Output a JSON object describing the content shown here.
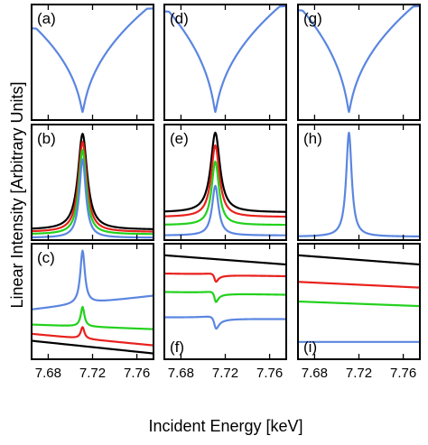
{
  "figure": {
    "xlabel": "Incident Energy [keV]",
    "ylabel": "Linear Intensity [Arbitrary Units]",
    "xticks": [
      "7.68",
      "7.72",
      "7.76"
    ]
  },
  "colors": {
    "black": "#000000",
    "red": "#e8211d",
    "green": "#22d11c",
    "blue": "#5b86e0"
  },
  "chart_data": [
    {
      "label": "(a)",
      "type": "line",
      "xlim": [
        7.665,
        7.775
      ],
      "series": [
        {
          "color": "blue",
          "shape": "dip",
          "center": 7.711,
          "width": 0.002,
          "ends": [
            0.81,
            0.98
          ],
          "min": 0.07
        }
      ]
    },
    {
      "label": "(d)",
      "type": "line",
      "xlim": [
        7.665,
        7.775
      ],
      "series": [
        {
          "color": "blue",
          "shape": "dip",
          "center": 7.711,
          "width": 0.002,
          "ends": [
            0.96,
            1.0
          ],
          "min": 0.07
        }
      ]
    },
    {
      "label": "(g)",
      "type": "line",
      "xlim": [
        7.665,
        7.775
      ],
      "series": [
        {
          "color": "blue",
          "shape": "dip",
          "center": 7.711,
          "width": 0.002,
          "ends": [
            0.97,
            1.0
          ],
          "min": 0.07
        }
      ]
    },
    {
      "label": "(b)",
      "type": "line",
      "xlim": [
        7.665,
        7.775
      ],
      "series": [
        {
          "color": "black",
          "shape": "peak",
          "center": 7.711,
          "width": 0.005,
          "base": 0.09,
          "peak": 0.92
        },
        {
          "color": "red",
          "shape": "peak",
          "center": 7.711,
          "width": 0.0045,
          "base": 0.07,
          "peak": 0.85
        },
        {
          "color": "green",
          "shape": "peak",
          "center": 7.711,
          "width": 0.004,
          "base": 0.05,
          "peak": 0.78
        },
        {
          "color": "blue",
          "shape": "peak",
          "center": 7.711,
          "width": 0.0035,
          "base": 0.02,
          "peak": 0.7
        }
      ]
    },
    {
      "label": "(e)",
      "type": "line",
      "xlim": [
        7.665,
        7.775
      ],
      "series": [
        {
          "color": "black",
          "shape": "peak",
          "center": 7.711,
          "width": 0.005,
          "base": 0.24,
          "peak": 0.93
        },
        {
          "color": "red",
          "shape": "peak",
          "center": 7.711,
          "width": 0.0045,
          "base": 0.2,
          "peak": 0.82
        },
        {
          "color": "green",
          "shape": "peak",
          "center": 7.711,
          "width": 0.004,
          "base": 0.13,
          "peak": 0.68
        },
        {
          "color": "blue",
          "shape": "peak",
          "center": 7.711,
          "width": 0.0035,
          "base": 0.04,
          "peak": 0.47
        }
      ]
    },
    {
      "label": "(h)",
      "type": "line",
      "xlim": [
        7.665,
        7.775
      ],
      "series": [
        {
          "color": "blue",
          "shape": "peak",
          "center": 7.711,
          "width": 0.003,
          "base": 0.03,
          "peak": 0.93
        }
      ]
    },
    {
      "label": "(c)",
      "type": "line",
      "xlim": [
        7.665,
        7.775
      ],
      "series": [
        {
          "color": "black",
          "shape": "slope",
          "start": 0.16,
          "end": 0.05
        },
        {
          "color": "red",
          "shape": "peak-on-slope",
          "center": 7.711,
          "width": 0.002,
          "start": 0.22,
          "end": 0.12,
          "amp": 0.1
        },
        {
          "color": "green",
          "shape": "peak-on-slope",
          "center": 7.711,
          "width": 0.002,
          "start": 0.3,
          "end": 0.26,
          "amp": 0.17
        },
        {
          "color": "blue",
          "shape": "peak-on-slope",
          "center": 7.711,
          "width": 0.0025,
          "start": 0.43,
          "end": 0.55,
          "amp": 0.46
        }
      ]
    },
    {
      "label": "(f)",
      "type": "line",
      "xlim": [
        7.665,
        7.775
      ],
      "series": [
        {
          "color": "black",
          "shape": "slope",
          "start": 0.9,
          "end": 0.82
        },
        {
          "color": "red",
          "shape": "dip-on-slope",
          "center": 7.711,
          "width": 0.002,
          "start": 0.74,
          "end": 0.72,
          "amp": 0.08
        },
        {
          "color": "green",
          "shape": "dip-on-slope",
          "center": 7.711,
          "width": 0.002,
          "start": 0.58,
          "end": 0.56,
          "amp": 0.1
        },
        {
          "color": "blue",
          "shape": "dip-on-slope",
          "center": 7.711,
          "width": 0.0025,
          "start": 0.36,
          "end": 0.35,
          "amp": 0.12
        }
      ]
    },
    {
      "label": "(i)",
      "type": "line",
      "xlim": [
        7.665,
        7.775
      ],
      "series": [
        {
          "color": "black",
          "shape": "slope",
          "start": 0.9,
          "end": 0.82
        },
        {
          "color": "red",
          "shape": "slope",
          "start": 0.67,
          "end": 0.62
        },
        {
          "color": "green",
          "shape": "slope",
          "start": 0.5,
          "end": 0.46
        },
        {
          "color": "blue",
          "shape": "slope",
          "start": 0.15,
          "end": 0.15
        }
      ]
    }
  ]
}
